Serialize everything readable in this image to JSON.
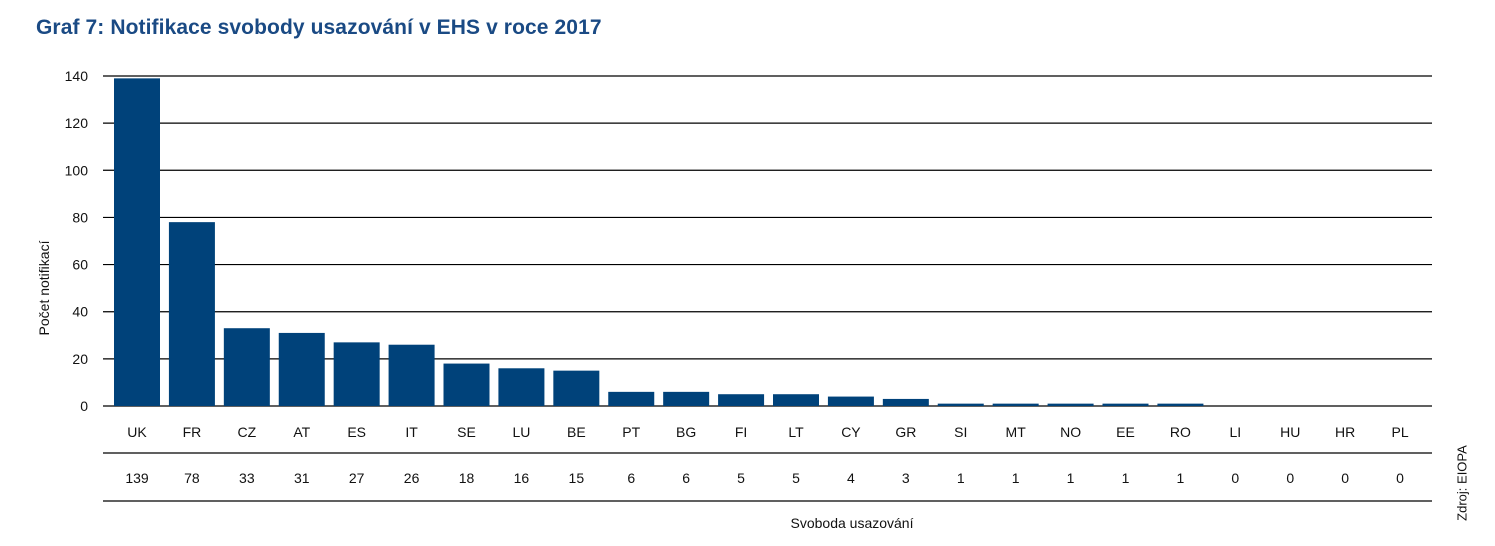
{
  "title": "Graf 7: Notifikace svobody usazování v EHS v roce 2017",
  "source": "Zdroj: EIOPA",
  "chart_data": {
    "type": "bar",
    "title": "Graf 7: Notifikace svobody usazování v EHS v roce 2017",
    "xlabel": "Svoboda usazování",
    "ylabel": "Počet notifikací",
    "ylim": [
      0,
      140
    ],
    "yticks": [
      0,
      20,
      40,
      60,
      80,
      100,
      120,
      140
    ],
    "grid": true,
    "bar_color": "#00427a",
    "categories": [
      "UK",
      "FR",
      "CZ",
      "AT",
      "ES",
      "IT",
      "SE",
      "LU",
      "BE",
      "PT",
      "BG",
      "FI",
      "LT",
      "CY",
      "GR",
      "SI",
      "MT",
      "NO",
      "EE",
      "RO",
      "LI",
      "HU",
      "HR",
      "PL"
    ],
    "values": [
      139,
      78,
      33,
      31,
      27,
      26,
      18,
      16,
      15,
      6,
      6,
      5,
      5,
      4,
      3,
      1,
      1,
      1,
      1,
      1,
      0,
      0,
      0,
      0
    ]
  }
}
